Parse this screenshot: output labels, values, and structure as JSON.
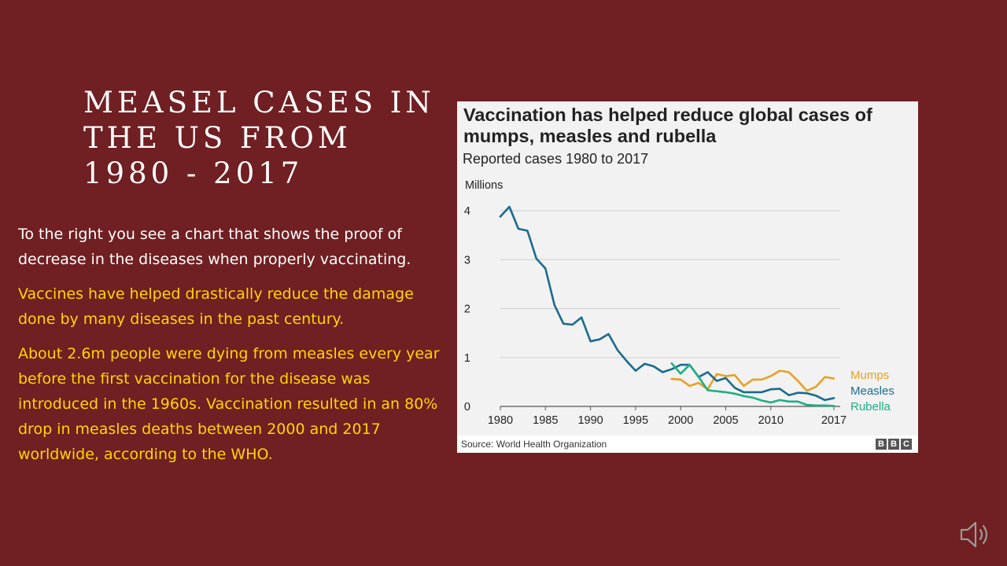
{
  "slide": {
    "title": "MEASEL CASES IN\nTHE US FROM\n1980 - 2017",
    "paragraphs": [
      "To the right you see a chart that shows the proof of decrease in the diseases when properly vaccinating.",
      "Vaccines have helped drastically reduce the damage done by many diseases in the past century.",
      "About 2.6m people were dying from measles every year before the first vaccination for the disease was introduced in the 1960s. Vaccination resulted in an 80% drop in measles deaths between 2000 and 2017 worldwide, according to the WHO."
    ],
    "colors": {
      "background": "#701f22",
      "white_text": "#ffffff",
      "yellow_text": "#ffd700"
    }
  },
  "chart_data": {
    "type": "line",
    "title": "Vaccination has helped reduce global cases of mumps, measles and rubella",
    "subtitle": "Reported cases 1980 to 2017",
    "ylabel": "Millions",
    "ylim": [
      0,
      4
    ],
    "yticks": [
      "0",
      "1",
      "2",
      "3",
      "4"
    ],
    "xlim": [
      1980,
      2017
    ],
    "xticks": [
      "1980",
      "1985",
      "1990",
      "1995",
      "2000",
      "2005",
      "2010",
      "2017"
    ],
    "grid": true,
    "source": "Source: World Health Organization",
    "logo": [
      "B",
      "B",
      "C"
    ],
    "series": [
      {
        "name": "Mumps",
        "color": "#e8a024",
        "x": [
          1999,
          2000,
          2001,
          2002,
          2003,
          2004,
          2005,
          2006,
          2007,
          2008,
          2009,
          2010,
          2011,
          2012,
          2013,
          2014,
          2015,
          2016,
          2017
        ],
        "values": [
          0.56,
          0.55,
          0.42,
          0.48,
          0.35,
          0.66,
          0.62,
          0.64,
          0.42,
          0.55,
          0.55,
          0.62,
          0.73,
          0.7,
          0.52,
          0.32,
          0.4,
          0.6,
          0.57
        ]
      },
      {
        "name": "Measles",
        "color": "#1a6b8d",
        "x": [
          1980,
          1981,
          1982,
          1983,
          1984,
          1985,
          1986,
          1987,
          1988,
          1989,
          1990,
          1991,
          1992,
          1993,
          1994,
          1995,
          1996,
          1997,
          1998,
          1999,
          2000,
          2001,
          2002,
          2003,
          2004,
          2005,
          2006,
          2007,
          2008,
          2009,
          2010,
          2011,
          2012,
          2013,
          2014,
          2015,
          2016,
          2017
        ],
        "values": [
          3.88,
          4.08,
          3.63,
          3.59,
          3.02,
          2.82,
          2.07,
          1.69,
          1.67,
          1.82,
          1.33,
          1.37,
          1.48,
          1.15,
          0.93,
          0.73,
          0.87,
          0.82,
          0.7,
          0.76,
          0.85,
          0.85,
          0.6,
          0.7,
          0.52,
          0.58,
          0.38,
          0.29,
          0.29,
          0.29,
          0.35,
          0.36,
          0.23,
          0.28,
          0.27,
          0.22,
          0.13,
          0.17
        ]
      },
      {
        "name": "Rubella",
        "color": "#1fae84",
        "x": [
          1999,
          2000,
          2001,
          2002,
          2003,
          2004,
          2005,
          2006,
          2007,
          2008,
          2009,
          2010,
          2011,
          2012,
          2013,
          2014,
          2015,
          2016,
          2017
        ],
        "values": [
          0.88,
          0.67,
          0.85,
          0.6,
          0.33,
          0.31,
          0.29,
          0.26,
          0.21,
          0.18,
          0.12,
          0.08,
          0.13,
          0.1,
          0.1,
          0.03,
          0.02,
          0.02,
          0.01
        ]
      }
    ]
  }
}
